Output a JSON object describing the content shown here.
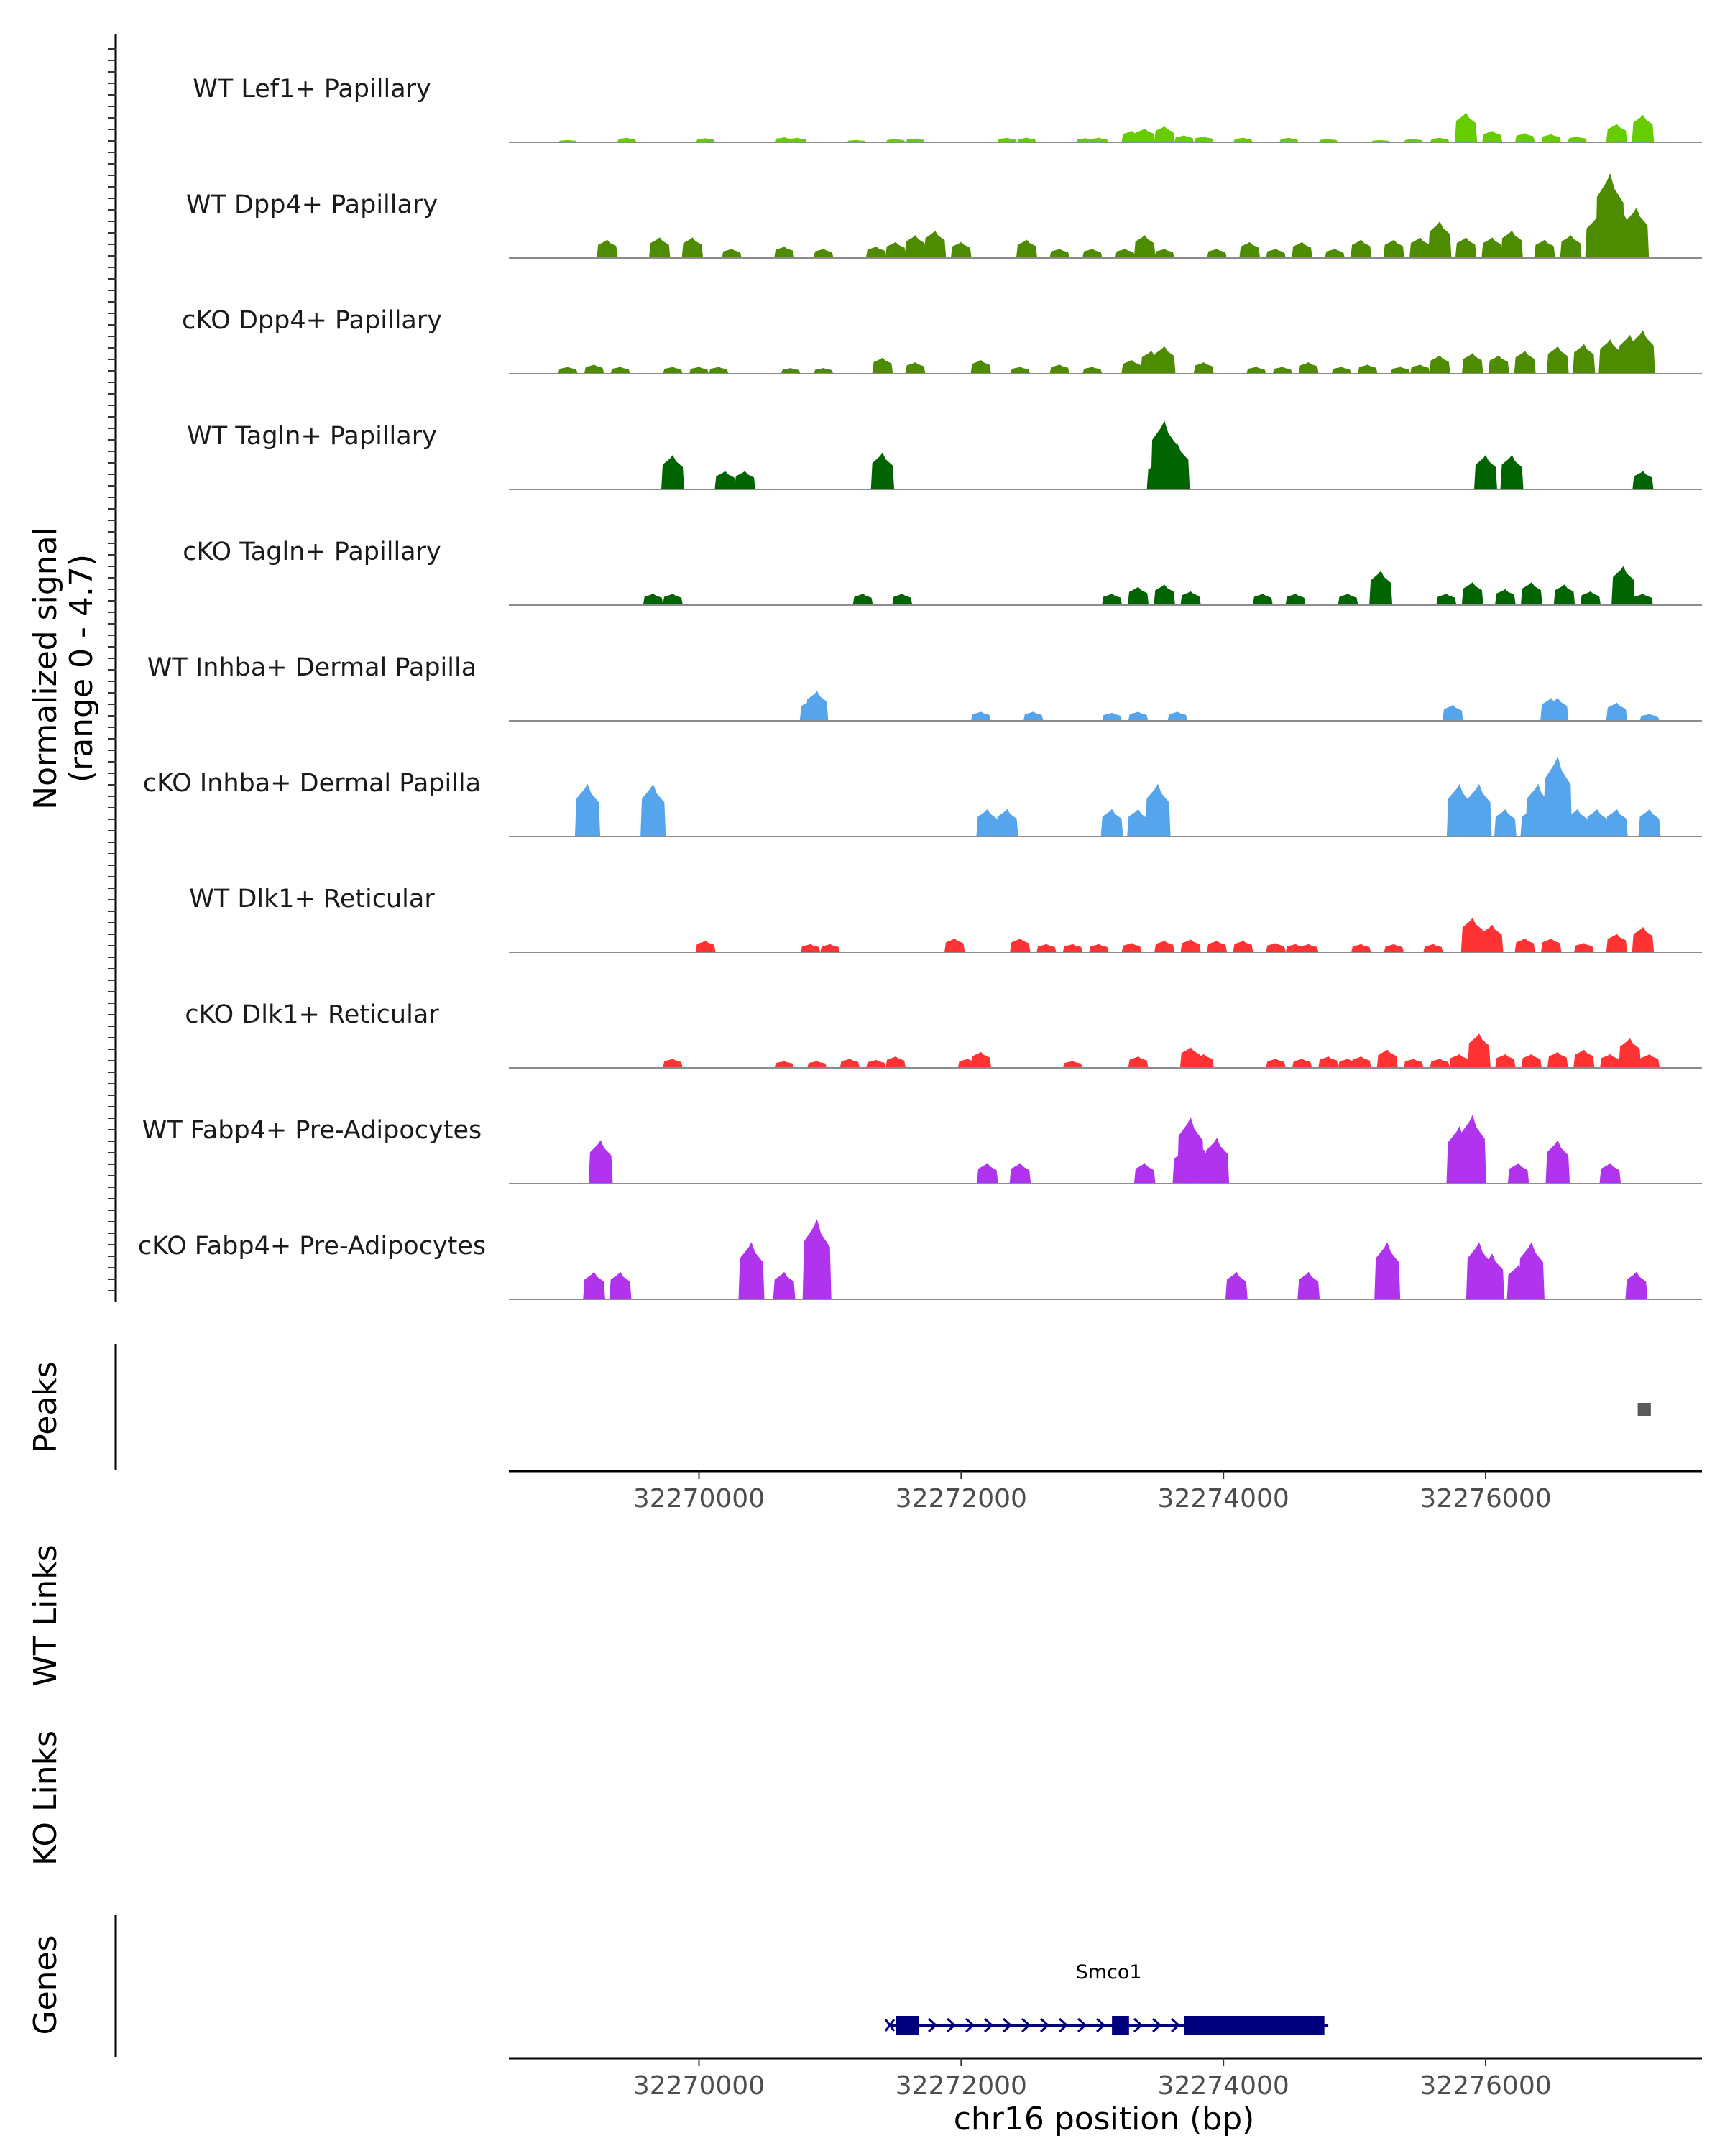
{
  "chart_data": {
    "type": "area",
    "region": {
      "chrom": "chr16",
      "xlim": [
        32268550,
        32277650
      ]
    },
    "coverage": {
      "ylabel_line1": "Normalized signal",
      "ylabel_line2": "(range 0 - 4.7)",
      "ylim": [
        0,
        4.7
      ],
      "tracks": [
        {
          "name": "WT Lef1+ Papillary",
          "color": "#66cc00",
          "peaks": [
            [
              32269000,
              0.1
            ],
            [
              32269450,
              0.2
            ],
            [
              32270050,
              0.18
            ],
            [
              32270650,
              0.22
            ],
            [
              32270750,
              0.2
            ],
            [
              32271200,
              0.1
            ],
            [
              32271500,
              0.15
            ],
            [
              32271650,
              0.17
            ],
            [
              32272350,
              0.2
            ],
            [
              32272500,
              0.2
            ],
            [
              32272950,
              0.18
            ],
            [
              32273050,
              0.2
            ],
            [
              32273300,
              0.5
            ],
            [
              32273400,
              0.6
            ],
            [
              32273550,
              0.7
            ],
            [
              32273700,
              0.3
            ],
            [
              32273850,
              0.25
            ],
            [
              32274150,
              0.2
            ],
            [
              32274500,
              0.2
            ],
            [
              32274800,
              0.15
            ],
            [
              32275200,
              0.1
            ],
            [
              32275450,
              0.15
            ],
            [
              32275650,
              0.2
            ],
            [
              32275850,
              1.3
            ],
            [
              32276050,
              0.5
            ],
            [
              32276300,
              0.4
            ],
            [
              32276500,
              0.35
            ],
            [
              32276700,
              0.25
            ],
            [
              32277000,
              0.8
            ],
            [
              32277200,
              1.2
            ]
          ]
        },
        {
          "name": "WT Dpp4+ Papillary",
          "color": "#4d8c00",
          "peaks": [
            [
              32269300,
              0.8
            ],
            [
              32269700,
              0.9
            ],
            [
              32269950,
              0.9
            ],
            [
              32270250,
              0.4
            ],
            [
              32270650,
              0.5
            ],
            [
              32270950,
              0.4
            ],
            [
              32271350,
              0.5
            ],
            [
              32271500,
              0.7
            ],
            [
              32271650,
              1.0
            ],
            [
              32271800,
              1.2
            ],
            [
              32272000,
              0.7
            ],
            [
              32272500,
              0.8
            ],
            [
              32272750,
              0.4
            ],
            [
              32273000,
              0.4
            ],
            [
              32273250,
              0.4
            ],
            [
              32273400,
              1.0
            ],
            [
              32273550,
              0.4
            ],
            [
              32273950,
              0.4
            ],
            [
              32274200,
              0.7
            ],
            [
              32274400,
              0.4
            ],
            [
              32274600,
              0.7
            ],
            [
              32274850,
              0.4
            ],
            [
              32275050,
              0.8
            ],
            [
              32275300,
              0.8
            ],
            [
              32275500,
              0.9
            ],
            [
              32275650,
              1.6
            ],
            [
              32275850,
              0.9
            ],
            [
              32276050,
              0.9
            ],
            [
              32276200,
              1.2
            ],
            [
              32276450,
              0.8
            ],
            [
              32276650,
              1.0
            ],
            [
              32276850,
              1.8
            ],
            [
              32276950,
              3.7
            ],
            [
              32277050,
              2.0
            ],
            [
              32277150,
              2.2
            ]
          ]
        },
        {
          "name": "cKO Dpp4+ Papillary",
          "color": "#4d8c00",
          "peaks": [
            [
              32269000,
              0.3
            ],
            [
              32269200,
              0.4
            ],
            [
              32269400,
              0.3
            ],
            [
              32269800,
              0.3
            ],
            [
              32270000,
              0.3
            ],
            [
              32270150,
              0.3
            ],
            [
              32270700,
              0.25
            ],
            [
              32270950,
              0.25
            ],
            [
              32271400,
              0.7
            ],
            [
              32271650,
              0.5
            ],
            [
              32272150,
              0.6
            ],
            [
              32272450,
              0.3
            ],
            [
              32272750,
              0.4
            ],
            [
              32273000,
              0.3
            ],
            [
              32273300,
              0.6
            ],
            [
              32273450,
              1.0
            ],
            [
              32273550,
              1.2
            ],
            [
              32273850,
              0.5
            ],
            [
              32274250,
              0.3
            ],
            [
              32274450,
              0.3
            ],
            [
              32274650,
              0.5
            ],
            [
              32274900,
              0.3
            ],
            [
              32275100,
              0.4
            ],
            [
              32275350,
              0.3
            ],
            [
              32275500,
              0.4
            ],
            [
              32275650,
              0.8
            ],
            [
              32275900,
              0.9
            ],
            [
              32276100,
              0.8
            ],
            [
              32276300,
              1.0
            ],
            [
              32276550,
              1.2
            ],
            [
              32276750,
              1.3
            ],
            [
              32276950,
              1.5
            ],
            [
              32277100,
              1.7
            ],
            [
              32277200,
              1.9
            ]
          ]
        },
        {
          "name": "WT Tagln+ Papillary",
          "color": "#006400",
          "peaks": [
            [
              32269800,
              1.5
            ],
            [
              32270200,
              0.8
            ],
            [
              32270350,
              0.8
            ],
            [
              32271400,
              1.6
            ],
            [
              32273500,
              1.2
            ],
            [
              32273550,
              3.0
            ],
            [
              32273650,
              2.0
            ],
            [
              32276000,
              1.5
            ],
            [
              32276200,
              1.5
            ],
            [
              32277200,
              0.8
            ]
          ]
        },
        {
          "name": "cKO Tagln+ Papillary",
          "color": "#006400",
          "peaks": [
            [
              32269650,
              0.5
            ],
            [
              32269800,
              0.5
            ],
            [
              32271250,
              0.5
            ],
            [
              32271550,
              0.5
            ],
            [
              32273150,
              0.5
            ],
            [
              32273350,
              0.8
            ],
            [
              32273550,
              0.9
            ],
            [
              32273750,
              0.6
            ],
            [
              32274300,
              0.5
            ],
            [
              32274550,
              0.5
            ],
            [
              32274950,
              0.5
            ],
            [
              32275200,
              1.5
            ],
            [
              32275700,
              0.5
            ],
            [
              32275900,
              1.0
            ],
            [
              32276150,
              0.7
            ],
            [
              32276350,
              1.0
            ],
            [
              32276600,
              0.9
            ],
            [
              32276800,
              0.6
            ],
            [
              32277050,
              1.7
            ],
            [
              32277200,
              0.5
            ]
          ]
        },
        {
          "name": "WT Inhba+ Dermal Papilla",
          "color": "#56a5ec",
          "peaks": [
            [
              32270850,
              0.9
            ],
            [
              32270900,
              1.3
            ],
            [
              32272150,
              0.4
            ],
            [
              32272550,
              0.4
            ],
            [
              32273150,
              0.35
            ],
            [
              32273350,
              0.4
            ],
            [
              32273650,
              0.4
            ],
            [
              32275750,
              0.7
            ],
            [
              32276500,
              1.0
            ],
            [
              32276550,
              1.0
            ],
            [
              32277000,
              0.8
            ],
            [
              32277250,
              0.3
            ]
          ]
        },
        {
          "name": "cKO Inhba+ Dermal Papilla",
          "color": "#56a5ec",
          "peaks": [
            [
              32269150,
              2.3
            ],
            [
              32269650,
              2.3
            ],
            [
              32272200,
              1.2
            ],
            [
              32272350,
              1.2
            ],
            [
              32273150,
              1.2
            ],
            [
              32273350,
              1.2
            ],
            [
              32273500,
              2.3
            ],
            [
              32275800,
              2.3
            ],
            [
              32275950,
              2.3
            ],
            [
              32276150,
              1.2
            ],
            [
              32276350,
              1.2
            ],
            [
              32276400,
              2.3
            ],
            [
              32276550,
              3.5
            ],
            [
              32276700,
              1.2
            ],
            [
              32276850,
              1.2
            ],
            [
              32277000,
              1.2
            ],
            [
              32277250,
              1.2
            ]
          ]
        },
        {
          "name": "WT Dlk1+ Reticular",
          "color": "#ff3333",
          "peaks": [
            [
              32270050,
              0.5
            ],
            [
              32270850,
              0.35
            ],
            [
              32271000,
              0.35
            ],
            [
              32271950,
              0.6
            ],
            [
              32272450,
              0.6
            ],
            [
              32272650,
              0.35
            ],
            [
              32272850,
              0.35
            ],
            [
              32273050,
              0.35
            ],
            [
              32273300,
              0.4
            ],
            [
              32273550,
              0.5
            ],
            [
              32273750,
              0.55
            ],
            [
              32273950,
              0.5
            ],
            [
              32274150,
              0.5
            ],
            [
              32274400,
              0.4
            ],
            [
              32274550,
              0.35
            ],
            [
              32274650,
              0.35
            ],
            [
              32275050,
              0.35
            ],
            [
              32275300,
              0.35
            ],
            [
              32275600,
              0.35
            ],
            [
              32275900,
              1.5
            ],
            [
              32276050,
              1.2
            ],
            [
              32276300,
              0.6
            ],
            [
              32276500,
              0.6
            ],
            [
              32276750,
              0.4
            ],
            [
              32277000,
              0.8
            ],
            [
              32277200,
              1.1
            ]
          ]
        },
        {
          "name": "cKO Dlk1+ Reticular",
          "color": "#ff3333",
          "peaks": [
            [
              32269800,
              0.4
            ],
            [
              32270650,
              0.3
            ],
            [
              32270900,
              0.3
            ],
            [
              32271150,
              0.4
            ],
            [
              32271350,
              0.35
            ],
            [
              32271500,
              0.5
            ],
            [
              32272050,
              0.4
            ],
            [
              32272150,
              0.7
            ],
            [
              32272850,
              0.3
            ],
            [
              32273350,
              0.5
            ],
            [
              32273750,
              0.9
            ],
            [
              32273850,
              0.6
            ],
            [
              32274400,
              0.4
            ],
            [
              32274600,
              0.4
            ],
            [
              32274800,
              0.5
            ],
            [
              32274950,
              0.4
            ],
            [
              32275050,
              0.5
            ],
            [
              32275250,
              0.8
            ],
            [
              32275450,
              0.4
            ],
            [
              32275650,
              0.4
            ],
            [
              32275800,
              0.6
            ],
            [
              32275950,
              1.5
            ],
            [
              32276150,
              0.6
            ],
            [
              32276350,
              0.6
            ],
            [
              32276550,
              0.7
            ],
            [
              32276750,
              0.8
            ],
            [
              32276950,
              0.6
            ],
            [
              32277100,
              1.3
            ],
            [
              32277250,
              0.6
            ]
          ]
        },
        {
          "name": "WT Fabp4+ Pre-Adipocytes",
          "color": "#b033ee",
          "peaks": [
            [
              32269250,
              1.9
            ],
            [
              32272200,
              0.9
            ],
            [
              32272450,
              0.9
            ],
            [
              32273400,
              0.9
            ],
            [
              32273700,
              1.5
            ],
            [
              32273750,
              2.9
            ],
            [
              32273850,
              1.5
            ],
            [
              32273950,
              2.0
            ],
            [
              32275800,
              2.5
            ],
            [
              32275900,
              3.0
            ],
            [
              32276250,
              0.9
            ],
            [
              32276550,
              1.9
            ],
            [
              32276950,
              0.9
            ]
          ]
        },
        {
          "name": "cKO Fabp4+ Pre-Adipocytes",
          "color": "#b033ee",
          "peaks": [
            [
              32269200,
              1.2
            ],
            [
              32269400,
              1.2
            ],
            [
              32270400,
              2.5
            ],
            [
              32270650,
              1.2
            ],
            [
              32270900,
              3.5
            ],
            [
              32274100,
              1.2
            ],
            [
              32274650,
              1.2
            ],
            [
              32275250,
              2.5
            ],
            [
              32275950,
              2.5
            ],
            [
              32276050,
              2.0
            ],
            [
              32276250,
              1.5
            ],
            [
              32276350,
              2.5
            ],
            [
              32277150,
              1.2
            ]
          ]
        }
      ]
    },
    "peaks_track": {
      "label": "Peaks",
      "peaks": [
        [
          32277160,
          32277260
        ]
      ]
    },
    "x_axis": {
      "ticks": [
        32270000,
        32272000,
        32274000,
        32276000
      ],
      "tick_labels": [
        "32270000",
        "32272000",
        "32274000",
        "32276000"
      ]
    },
    "links_tracks": [
      {
        "label": "WT Links"
      },
      {
        "label": "KO Links"
      }
    ],
    "genes_track": {
      "label": "Genes",
      "gene": {
        "name": "Smco1",
        "start": 32271450,
        "end": 32274800,
        "strand": "+",
        "exons": [
          [
            32271500,
            32271680
          ],
          [
            32273150,
            32273280
          ],
          [
            32273700,
            32274770
          ]
        ]
      }
    },
    "xlabel": "chr16 position (bp)"
  }
}
